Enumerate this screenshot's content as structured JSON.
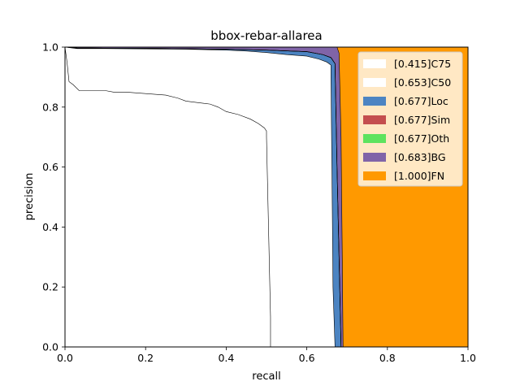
{
  "chart_data": {
    "type": "area",
    "title": "bbox-rebar-allarea",
    "xlabel": "recall",
    "ylabel": "precision",
    "xlim": [
      0,
      1
    ],
    "ylim": [
      0,
      1
    ],
    "x_ticks": [
      "0.0",
      "0.2",
      "0.4",
      "0.6",
      "0.8",
      "1.0"
    ],
    "y_ticks": [
      "0.0",
      "0.2",
      "0.4",
      "0.6",
      "0.8",
      "1.0"
    ],
    "grid": false,
    "legend_position": "top-right",
    "legend": [
      {
        "label": "[0.415]C75",
        "color": "#ffffff"
      },
      {
        "label": "[0.653]C50",
        "color": "#ffffff"
      },
      {
        "label": "[0.677]Loc",
        "color": "#4c84c2"
      },
      {
        "label": "[0.677]Sim",
        "color": "#c44e4e"
      },
      {
        "label": "[0.677]Oth",
        "color": "#5ee35e"
      },
      {
        "label": "[0.683]BG",
        "color": "#8064a8"
      },
      {
        "label": "[1.000]FN",
        "color": "#ff9900"
      }
    ],
    "series": [
      {
        "name": "[0.415]C75",
        "color": "#ffffff",
        "points": [
          [
            0.0,
            1.0
          ],
          [
            0.005,
            0.95
          ],
          [
            0.01,
            0.885
          ],
          [
            0.02,
            0.875
          ],
          [
            0.035,
            0.855
          ],
          [
            0.06,
            0.855
          ],
          [
            0.1,
            0.855
          ],
          [
            0.12,
            0.85
          ],
          [
            0.15,
            0.85
          ],
          [
            0.2,
            0.845
          ],
          [
            0.25,
            0.84
          ],
          [
            0.28,
            0.83
          ],
          [
            0.3,
            0.82
          ],
          [
            0.33,
            0.815
          ],
          [
            0.36,
            0.81
          ],
          [
            0.38,
            0.8
          ],
          [
            0.4,
            0.785
          ],
          [
            0.43,
            0.775
          ],
          [
            0.46,
            0.76
          ],
          [
            0.48,
            0.745
          ],
          [
            0.495,
            0.73
          ],
          [
            0.5,
            0.72
          ],
          [
            0.5,
            0.7
          ],
          [
            0.505,
            0.4
          ],
          [
            0.51,
            0.1
          ],
          [
            0.51,
            0.0
          ]
        ]
      },
      {
        "name": "[0.653]C50",
        "color": "#ffffff",
        "points": [
          [
            0.0,
            1.0
          ],
          [
            0.03,
            0.995
          ],
          [
            0.1,
            0.995
          ],
          [
            0.3,
            0.993
          ],
          [
            0.4,
            0.99
          ],
          [
            0.45,
            0.987
          ],
          [
            0.5,
            0.982
          ],
          [
            0.55,
            0.975
          ],
          [
            0.6,
            0.97
          ],
          [
            0.63,
            0.96
          ],
          [
            0.65,
            0.95
          ],
          [
            0.66,
            0.94
          ],
          [
            0.66,
            0.9
          ],
          [
            0.663,
            0.5
          ],
          [
            0.665,
            0.2
          ],
          [
            0.67,
            0.0
          ]
        ]
      },
      {
        "name": "[0.677]Loc",
        "color": "#4c84c2",
        "points": [
          [
            0.0,
            1.0
          ],
          [
            0.03,
            0.997
          ],
          [
            0.2,
            0.996
          ],
          [
            0.4,
            0.993
          ],
          [
            0.5,
            0.99
          ],
          [
            0.6,
            0.985
          ],
          [
            0.64,
            0.975
          ],
          [
            0.66,
            0.965
          ],
          [
            0.67,
            0.945
          ],
          [
            0.675,
            0.6
          ],
          [
            0.68,
            0.3
          ],
          [
            0.685,
            0.0
          ]
        ]
      },
      {
        "name": "[0.677]Sim",
        "color": "#c44e4e",
        "points": [
          [
            0.0,
            1.0
          ],
          [
            0.03,
            0.997
          ],
          [
            0.2,
            0.996
          ],
          [
            0.4,
            0.993
          ],
          [
            0.5,
            0.99
          ],
          [
            0.6,
            0.985
          ],
          [
            0.64,
            0.975
          ],
          [
            0.66,
            0.965
          ],
          [
            0.67,
            0.945
          ],
          [
            0.675,
            0.6
          ],
          [
            0.68,
            0.3
          ],
          [
            0.685,
            0.0
          ]
        ]
      },
      {
        "name": "[0.677]Oth",
        "color": "#5ee35e",
        "points": [
          [
            0.0,
            1.0
          ],
          [
            0.03,
            0.997
          ],
          [
            0.2,
            0.996
          ],
          [
            0.4,
            0.993
          ],
          [
            0.5,
            0.99
          ],
          [
            0.6,
            0.985
          ],
          [
            0.64,
            0.975
          ],
          [
            0.66,
            0.965
          ],
          [
            0.67,
            0.945
          ],
          [
            0.675,
            0.6
          ],
          [
            0.68,
            0.3
          ],
          [
            0.685,
            0.0
          ]
        ]
      },
      {
        "name": "[0.683]BG",
        "color": "#8064a8",
        "points": [
          [
            0.0,
            1.0
          ],
          [
            0.6,
            1.0
          ],
          [
            0.66,
            1.0
          ],
          [
            0.675,
            1.0
          ],
          [
            0.68,
            0.98
          ],
          [
            0.685,
            0.7
          ],
          [
            0.688,
            0.3
          ],
          [
            0.69,
            0.0
          ]
        ]
      },
      {
        "name": "[1.000]FN",
        "color": "#ff9900",
        "points": [
          [
            0.0,
            1.0
          ],
          [
            0.675,
            1.0
          ],
          [
            0.68,
            1.0
          ],
          [
            1.0,
            1.0
          ],
          [
            1.0,
            0.0
          ]
        ]
      }
    ]
  }
}
